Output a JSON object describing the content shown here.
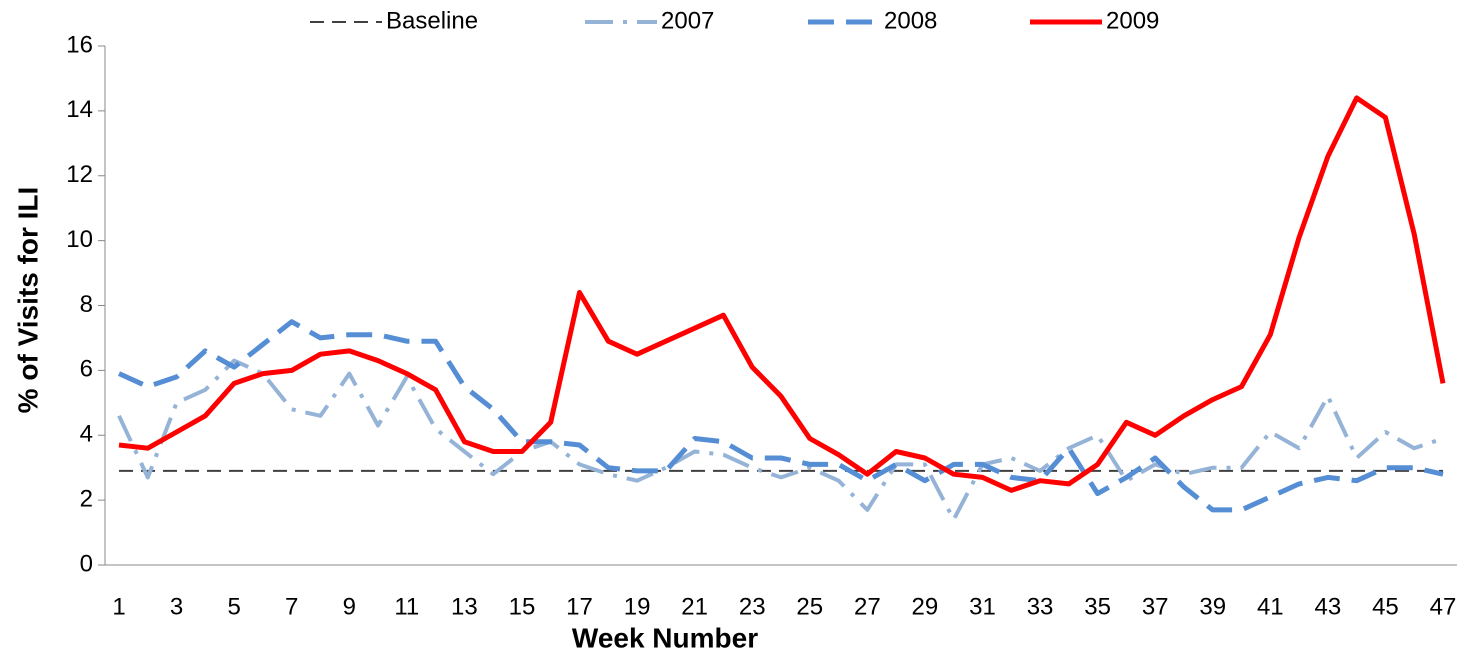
{
  "chart_data": {
    "type": "line",
    "xlabel": "Week Number",
    "ylabel": "% of Visits for ILI",
    "categories": [
      1,
      null,
      3,
      null,
      5,
      null,
      7,
      null,
      9,
      null,
      11,
      null,
      13,
      null,
      15,
      null,
      17,
      null,
      19,
      null,
      21,
      null,
      23,
      null,
      25,
      null,
      27,
      null,
      29,
      null,
      31,
      null,
      33,
      null,
      35,
      null,
      37,
      null,
      39,
      null,
      41,
      null,
      43,
      null,
      45,
      null,
      47
    ],
    "ylim": [
      0,
      16
    ],
    "yticks": [
      0,
      2,
      4,
      6,
      8,
      10,
      12,
      14,
      16
    ],
    "legend": "top",
    "series": [
      {
        "name": "Baseline",
        "color": "#404040",
        "style": "dashed",
        "width": 2,
        "values": [
          2.9,
          2.9,
          2.9,
          2.9,
          2.9,
          2.9,
          2.9,
          2.9,
          2.9,
          2.9,
          2.9,
          2.9,
          2.9,
          2.9,
          2.9,
          2.9,
          2.9,
          2.9,
          2.9,
          2.9,
          2.9,
          2.9,
          2.9,
          2.9,
          2.9,
          2.9,
          2.9,
          2.9,
          2.9,
          2.9,
          2.9,
          2.9,
          2.9,
          2.9,
          2.9,
          2.9,
          2.9,
          2.9,
          2.9,
          2.9,
          2.9,
          2.9,
          2.9,
          2.9,
          2.9,
          2.9,
          2.9
        ]
      },
      {
        "name": "2007",
        "color": "#95b3d7",
        "style": "dashdot",
        "width": 4,
        "values": [
          4.6,
          2.7,
          5.0,
          5.4,
          6.3,
          5.9,
          4.8,
          4.6,
          5.9,
          4.3,
          5.8,
          4.2,
          3.5,
          2.8,
          3.5,
          3.8,
          3.1,
          2.8,
          2.6,
          3.0,
          3.5,
          3.4,
          3.0,
          2.7,
          3.0,
          2.6,
          1.7,
          3.1,
          3.1,
          1.4,
          3.1,
          3.3,
          2.9,
          3.6,
          4.0,
          2.6,
          3.1,
          2.8,
          3.0,
          3.0,
          4.1,
          3.6,
          5.2,
          3.3,
          4.1,
          3.6,
          3.9
        ]
      },
      {
        "name": "2008",
        "color": "#558ed5",
        "style": "longdash",
        "width": 5,
        "values": [
          5.9,
          5.5,
          5.8,
          6.6,
          6.1,
          6.8,
          7.5,
          7.0,
          7.1,
          7.1,
          6.9,
          6.9,
          5.5,
          4.8,
          3.8,
          3.8,
          3.7,
          3.0,
          2.9,
          2.9,
          3.9,
          3.8,
          3.3,
          3.3,
          3.1,
          3.1,
          2.6,
          3.1,
          2.6,
          3.1,
          3.1,
          2.7,
          2.6,
          3.6,
          2.2,
          2.7,
          3.3,
          2.4,
          1.7,
          1.7,
          2.1,
          2.5,
          2.7,
          2.6,
          3.0,
          3.0,
          2.8
        ]
      },
      {
        "name": "2009",
        "color": "#ff0000",
        "style": "solid",
        "width": 5,
        "values": [
          3.7,
          3.6,
          4.1,
          4.6,
          5.6,
          5.9,
          6.0,
          6.5,
          6.6,
          6.3,
          5.9,
          5.4,
          3.8,
          3.5,
          3.5,
          4.4,
          8.4,
          6.9,
          6.5,
          6.9,
          7.3,
          7.7,
          6.1,
          5.2,
          3.9,
          3.4,
          2.8,
          3.5,
          3.3,
          2.8,
          2.7,
          2.3,
          2.6,
          2.5,
          3.1,
          4.4,
          4.0,
          4.6,
          5.1,
          5.5,
          7.1,
          10.1,
          12.6,
          14.4,
          13.8,
          10.2,
          5.6
        ]
      }
    ]
  }
}
